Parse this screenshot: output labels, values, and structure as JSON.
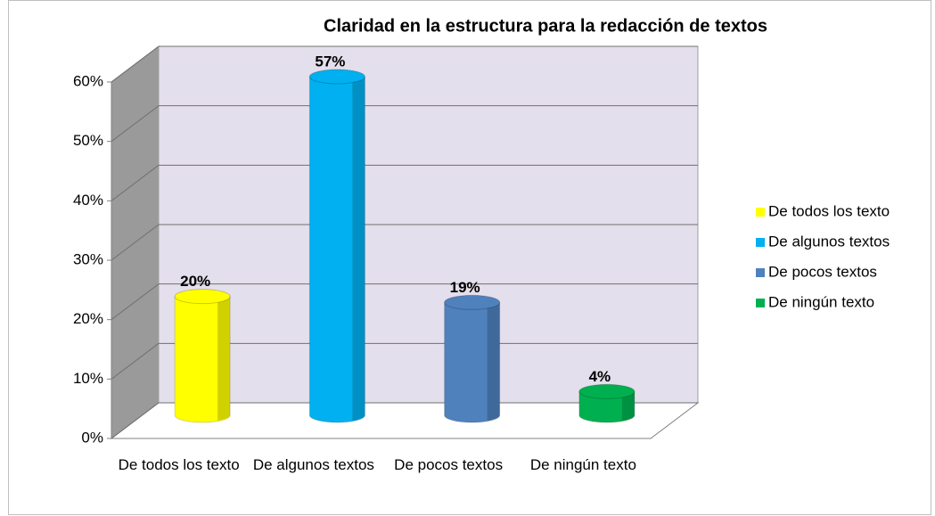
{
  "chart_data": {
    "type": "bar3d",
    "title": "Claridad en la estructura para la redacción de textos",
    "categories": [
      "De todos los texto",
      "De algunos textos",
      "De pocos textos",
      "De ningún texto"
    ],
    "series": [
      {
        "name": "De todos los texto",
        "color": "#ffff00"
      },
      {
        "name": "De algunos textos",
        "color": "#00b0f0"
      },
      {
        "name": "De pocos textos",
        "color": "#4f81bd"
      },
      {
        "name": "De ningún texto",
        "color": "#00b050"
      }
    ],
    "values": [
      20,
      57,
      19,
      4
    ],
    "value_labels": [
      "20%",
      "57%",
      "19%",
      "4%"
    ],
    "ylim": [
      0,
      60
    ],
    "yticks": [
      {
        "value": 0,
        "label": "0%"
      },
      {
        "value": 10,
        "label": "10%"
      },
      {
        "value": 20,
        "label": "20%"
      },
      {
        "value": 30,
        "label": "30%"
      },
      {
        "value": 40,
        "label": "40%"
      },
      {
        "value": 50,
        "label": "50%"
      },
      {
        "value": 60,
        "label": "60%"
      }
    ],
    "grid": true,
    "legend": "right"
  }
}
